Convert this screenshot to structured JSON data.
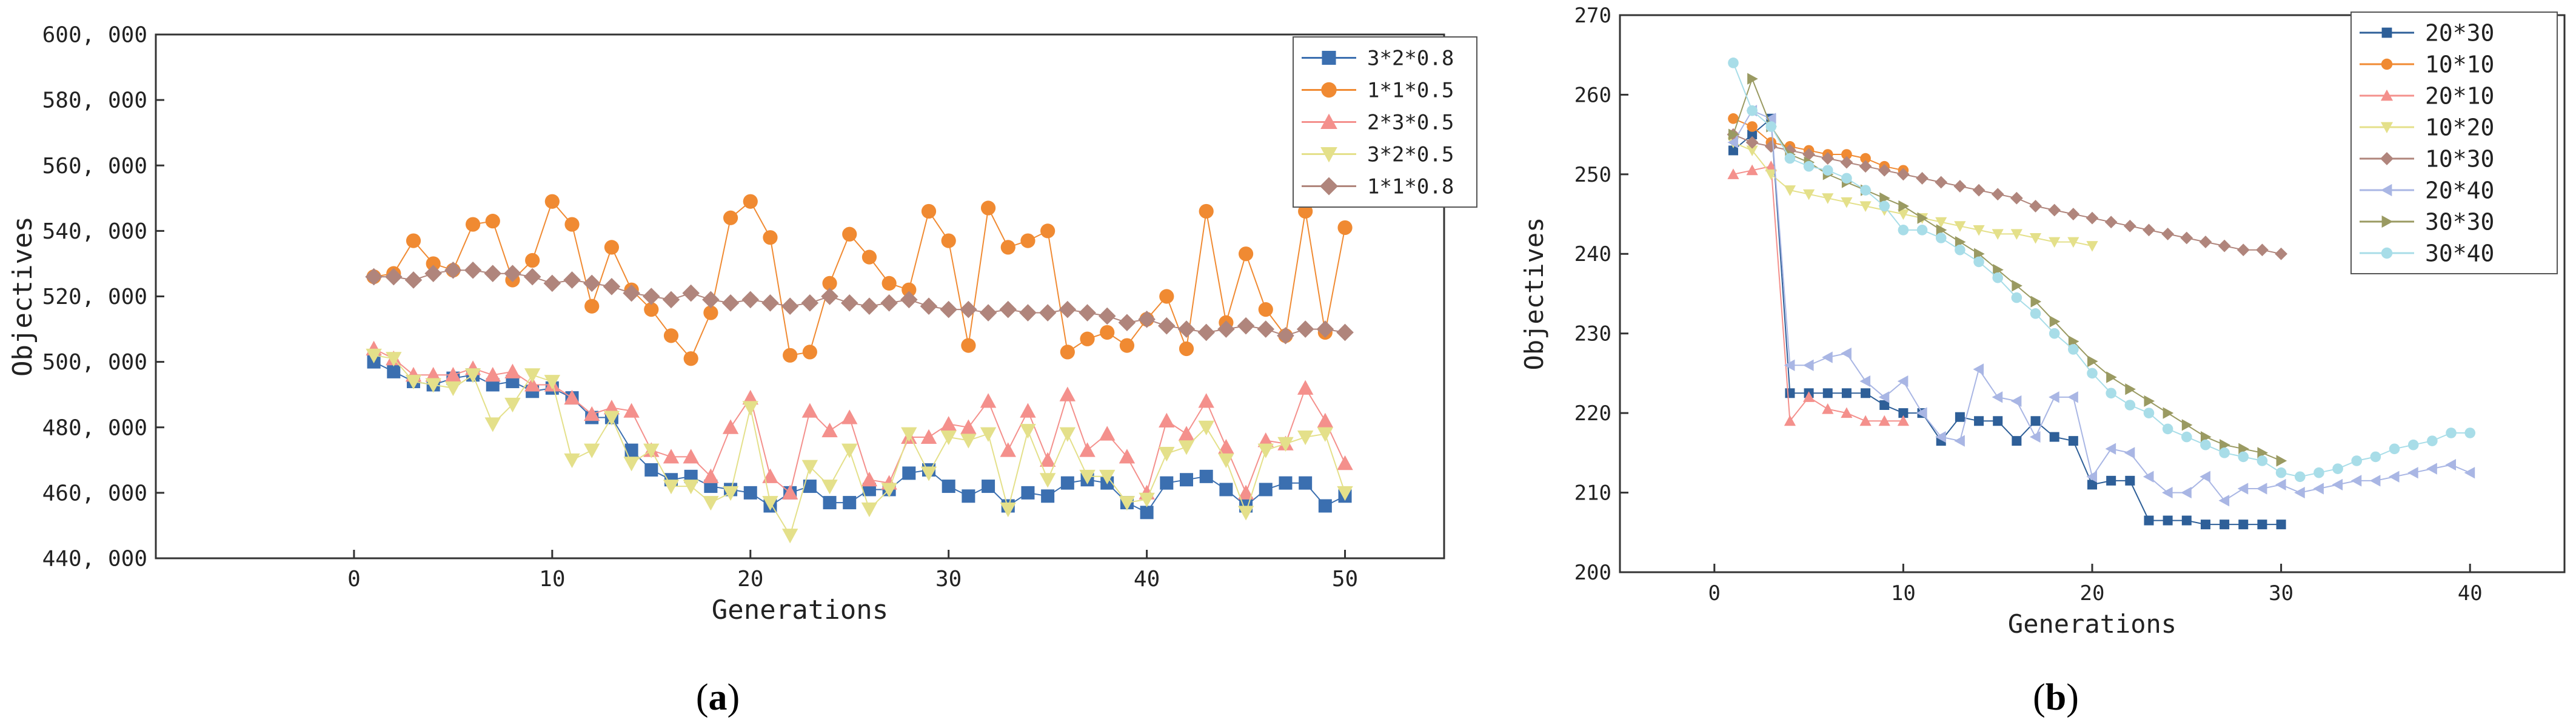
{
  "chart_data": [
    {
      "type": "line",
      "panel_label_open": "(",
      "panel_label": "a",
      "panel_label_close": ")",
      "xlabel": "Generations",
      "ylabel": "Objectives",
      "xlim": [
        -10,
        55
      ],
      "ylim": [
        440000,
        600000
      ],
      "xticks": [
        0,
        10,
        20,
        30,
        40,
        50
      ],
      "yticks": [
        440000,
        460000,
        480000,
        500000,
        520000,
        540000,
        560000,
        580000,
        600000
      ],
      "ytick_labels": [
        "440, 000",
        "460, 000",
        "480, 000",
        "500, 000",
        "520, 000",
        "540, 000",
        "560, 000",
        "580, 000",
        "600, 000"
      ],
      "grid": false,
      "legend_position": "top-right",
      "series": [
        {
          "name": "3*2*0.8",
          "color": "#3b6fb0",
          "marker": "square",
          "x": [
            1,
            2,
            3,
            4,
            5,
            6,
            7,
            8,
            9,
            10,
            11,
            12,
            13,
            14,
            15,
            16,
            17,
            18,
            19,
            20,
            21,
            22,
            23,
            24,
            25,
            26,
            27,
            28,
            29,
            30,
            31,
            32,
            33,
            34,
            35,
            36,
            37,
            38,
            39,
            40,
            41,
            42,
            43,
            44,
            45,
            46,
            47,
            48,
            49,
            50
          ],
          "values": [
            500000,
            497000,
            494000,
            493000,
            495000,
            496000,
            493000,
            494000,
            491000,
            492000,
            489000,
            483000,
            483000,
            473000,
            467000,
            464000,
            465000,
            462000,
            461000,
            460000,
            456000,
            460000,
            462000,
            457000,
            457000,
            461000,
            461000,
            466000,
            467000,
            462000,
            459000,
            462000,
            456000,
            460000,
            459000,
            463000,
            464000,
            463000,
            457000,
            454000,
            463000,
            464000,
            465000,
            461000,
            456000,
            461000,
            463000,
            463000,
            456000,
            459000
          ]
        },
        {
          "name": "1*1*0.5",
          "color": "#f08a32",
          "marker": "circle",
          "x": [
            1,
            2,
            3,
            4,
            5,
            6,
            7,
            8,
            9,
            10,
            11,
            12,
            13,
            14,
            15,
            16,
            17,
            18,
            19,
            20,
            21,
            22,
            23,
            24,
            25,
            26,
            27,
            28,
            29,
            30,
            31,
            32,
            33,
            34,
            35,
            36,
            37,
            38,
            39,
            40,
            41,
            42,
            43,
            44,
            45,
            46,
            47,
            48,
            49,
            50
          ],
          "values": [
            526000,
            527000,
            537000,
            530000,
            528000,
            542000,
            543000,
            525000,
            531000,
            549000,
            542000,
            517000,
            535000,
            522000,
            516000,
            508000,
            501000,
            515000,
            544000,
            549000,
            538000,
            502000,
            503000,
            524000,
            539000,
            532000,
            524000,
            522000,
            546000,
            537000,
            505000,
            547000,
            535000,
            537000,
            540000,
            503000,
            507000,
            509000,
            505000,
            513000,
            520000,
            504000,
            546000,
            512000,
            533000,
            516000,
            508000,
            546000,
            509000,
            541000
          ]
        },
        {
          "name": "2*3*0.5",
          "color": "#f4908c",
          "marker": "triangle-up",
          "x": [
            1,
            2,
            3,
            4,
            5,
            6,
            7,
            8,
            9,
            10,
            11,
            12,
            13,
            14,
            15,
            16,
            17,
            18,
            19,
            20,
            21,
            22,
            23,
            24,
            25,
            26,
            27,
            28,
            29,
            30,
            31,
            32,
            33,
            34,
            35,
            36,
            37,
            38,
            39,
            40,
            41,
            42,
            43,
            44,
            45,
            46,
            47,
            48,
            49,
            50
          ],
          "values": [
            504000,
            501000,
            496000,
            496000,
            496000,
            498000,
            496000,
            497000,
            493000,
            493000,
            489000,
            484000,
            486000,
            485000,
            473000,
            471000,
            471000,
            465000,
            480000,
            489000,
            465000,
            460000,
            485000,
            479000,
            483000,
            464000,
            463000,
            477000,
            477000,
            481000,
            480000,
            488000,
            473000,
            485000,
            470000,
            490000,
            473000,
            478000,
            471000,
            460000,
            482000,
            478000,
            488000,
            474000,
            460000,
            476000,
            475000,
            492000,
            482000,
            469000
          ]
        },
        {
          "name": "3*2*0.5",
          "color": "#e4e08a",
          "marker": "triangle-down",
          "x": [
            1,
            2,
            3,
            4,
            5,
            6,
            7,
            8,
            9,
            10,
            11,
            12,
            13,
            14,
            15,
            16,
            17,
            18,
            19,
            20,
            21,
            22,
            23,
            24,
            25,
            26,
            27,
            28,
            29,
            30,
            31,
            32,
            33,
            34,
            35,
            36,
            37,
            38,
            39,
            40,
            41,
            42,
            43,
            44,
            45,
            46,
            47,
            48,
            49,
            50
          ],
          "values": [
            502000,
            501000,
            494000,
            493000,
            492000,
            496000,
            481000,
            487000,
            496000,
            494000,
            470000,
            473000,
            483000,
            469000,
            473000,
            462000,
            462000,
            457000,
            460000,
            486000,
            457000,
            447000,
            468000,
            462000,
            473000,
            455000,
            461000,
            478000,
            466000,
            477000,
            476000,
            478000,
            455000,
            479000,
            464000,
            478000,
            465000,
            465000,
            457000,
            458000,
            472000,
            474000,
            480000,
            470000,
            454000,
            473000,
            475000,
            477000,
            478000,
            460000
          ]
        },
        {
          "name": "1*1*0.8",
          "color": "#b0857c",
          "marker": "diamond",
          "x": [
            1,
            2,
            3,
            4,
            5,
            6,
            7,
            8,
            9,
            10,
            11,
            12,
            13,
            14,
            15,
            16,
            17,
            18,
            19,
            20,
            21,
            22,
            23,
            24,
            25,
            26,
            27,
            28,
            29,
            30,
            31,
            32,
            33,
            34,
            35,
            36,
            37,
            38,
            39,
            40,
            41,
            42,
            43,
            44,
            45,
            46,
            47,
            48,
            49,
            50
          ],
          "values": [
            526000,
            526000,
            525000,
            527000,
            528000,
            528000,
            527000,
            527000,
            526000,
            524000,
            525000,
            524000,
            523000,
            521000,
            520000,
            519000,
            521000,
            519000,
            518000,
            519000,
            518000,
            517000,
            518000,
            520000,
            518000,
            517000,
            518000,
            519000,
            517000,
            516000,
            516000,
            515000,
            516000,
            515000,
            515000,
            516000,
            515000,
            514000,
            512000,
            513000,
            511000,
            510000,
            509000,
            510000,
            511000,
            510000,
            508000,
            510000,
            510000,
            509000
          ]
        }
      ]
    },
    {
      "type": "line",
      "panel_label_open": "(",
      "panel_label": "b",
      "panel_label_close": ")",
      "xlabel": "Generations",
      "ylabel": "Objectives",
      "xlim": [
        -5,
        45
      ],
      "ylim": [
        200,
        270
      ],
      "xticks": [
        0,
        10,
        20,
        30,
        40
      ],
      "yticks": [
        200,
        210,
        220,
        230,
        240,
        250,
        260,
        270
      ],
      "ytick_labels": [
        "200",
        "210",
        "220",
        "230",
        "240",
        "250",
        "260",
        "270"
      ],
      "grid": false,
      "legend_position": "top-right",
      "series": [
        {
          "name": "20*30",
          "color": "#2e5f98",
          "marker": "square",
          "x": [
            1,
            2,
            3,
            4,
            5,
            6,
            7,
            8,
            9,
            10,
            11,
            12,
            13,
            14,
            15,
            16,
            17,
            18,
            19,
            20,
            21,
            22,
            23,
            24,
            25,
            26,
            27,
            28,
            29,
            30
          ],
          "values": [
            253,
            255,
            257,
            222.5,
            222.5,
            222.5,
            222.5,
            222.5,
            221,
            220,
            220,
            216.5,
            219.5,
            219,
            219,
            216.5,
            219,
            217,
            216.5,
            211,
            211.5,
            211.5,
            206.5,
            206.5,
            206.5,
            206,
            206,
            206,
            206,
            206
          ]
        },
        {
          "name": "10*10",
          "color": "#f08a32",
          "marker": "circle",
          "x": [
            1,
            2,
            3,
            4,
            5,
            6,
            7,
            8,
            9,
            10
          ],
          "values": [
            257,
            256,
            254,
            253.5,
            253,
            252.5,
            252.5,
            252,
            251,
            250.5
          ]
        },
        {
          "name": "20*10",
          "color": "#f4908c",
          "marker": "triangle-up",
          "x": [
            1,
            2,
            3,
            4,
            5,
            6,
            7,
            8,
            9,
            10
          ],
          "values": [
            250,
            250.5,
            251,
            219,
            222,
            220.5,
            220,
            219,
            219,
            219
          ]
        },
        {
          "name": "10*20",
          "color": "#e4e08a",
          "marker": "triangle-down",
          "x": [
            1,
            2,
            3,
            4,
            5,
            6,
            7,
            8,
            9,
            10,
            11,
            12,
            13,
            14,
            15,
            16,
            17,
            18,
            19,
            20
          ],
          "values": [
            254,
            253,
            250,
            248,
            247.5,
            247,
            246.5,
            246,
            245.5,
            245,
            244.5,
            244,
            243.5,
            243,
            242.5,
            242.5,
            242,
            241.5,
            241.5,
            241
          ]
        },
        {
          "name": "10*30",
          "color": "#b0857c",
          "marker": "diamond",
          "x": [
            1,
            2,
            3,
            4,
            5,
            6,
            7,
            8,
            9,
            10,
            11,
            12,
            13,
            14,
            15,
            16,
            17,
            18,
            19,
            20,
            21,
            22,
            23,
            24,
            25,
            26,
            27,
            28,
            29,
            30
          ],
          "values": [
            255,
            254,
            253.5,
            253,
            252.5,
            252,
            251.5,
            251,
            250.5,
            250,
            249.5,
            249,
            248.5,
            248,
            247.5,
            247,
            246,
            245.5,
            245,
            244.5,
            244,
            243.5,
            243,
            242.5,
            242,
            241.5,
            241,
            240.5,
            240.5,
            240
          ]
        },
        {
          "name": "20*40",
          "color": "#a9b6e4",
          "marker": "triangle-left",
          "x": [
            1,
            2,
            3,
            4,
            5,
            6,
            7,
            8,
            9,
            10,
            11,
            12,
            13,
            14,
            15,
            16,
            17,
            18,
            19,
            20,
            21,
            22,
            23,
            24,
            25,
            26,
            27,
            28,
            29,
            30,
            31,
            32,
            33,
            34,
            35,
            36,
            37,
            38,
            39,
            40
          ],
          "values": [
            254,
            258,
            257,
            226,
            226,
            227,
            227.5,
            224,
            222,
            224,
            220,
            217,
            216.5,
            225.5,
            222,
            221.5,
            217,
            222,
            222,
            212,
            215.5,
            215,
            212,
            210,
            210,
            212,
            209,
            210.5,
            210.5,
            211,
            210,
            210.5,
            211,
            211.5,
            211.5,
            212,
            212.5,
            213,
            213.5,
            212.5
          ]
        },
        {
          "name": "30*30",
          "color": "#9a9a62",
          "marker": "triangle-right",
          "x": [
            1,
            2,
            3,
            4,
            5,
            6,
            7,
            8,
            9,
            10,
            11,
            12,
            13,
            14,
            15,
            16,
            17,
            18,
            19,
            20,
            21,
            22,
            23,
            24,
            25,
            26,
            27,
            28,
            29,
            30
          ],
          "values": [
            255,
            262,
            256,
            252.5,
            251.5,
            250,
            249,
            248,
            247,
            246,
            244.5,
            243,
            241.5,
            240,
            238,
            236,
            234,
            231.5,
            229,
            226.5,
            224.5,
            223,
            221.5,
            220,
            218.5,
            217,
            216,
            215.5,
            215,
            214
          ]
        },
        {
          "name": "30*40",
          "color": "#a8dde8",
          "marker": "circle",
          "x": [
            1,
            2,
            3,
            4,
            5,
            6,
            7,
            8,
            9,
            10,
            11,
            12,
            13,
            14,
            15,
            16,
            17,
            18,
            19,
            20,
            21,
            22,
            23,
            24,
            25,
            26,
            27,
            28,
            29,
            30,
            31,
            32,
            33,
            34,
            35,
            36,
            37,
            38,
            39,
            40
          ],
          "values": [
            264,
            258,
            256,
            252,
            251,
            250.5,
            249.5,
            248,
            246,
            243,
            243,
            242,
            240.5,
            239,
            237,
            234.5,
            232.5,
            230,
            228,
            225,
            222.5,
            221,
            220,
            218,
            217,
            216,
            215,
            214.5,
            214,
            212.5,
            212,
            212.5,
            213,
            214,
            214.5,
            215.5,
            216,
            216.5,
            217.5,
            217.5
          ]
        }
      ]
    }
  ]
}
